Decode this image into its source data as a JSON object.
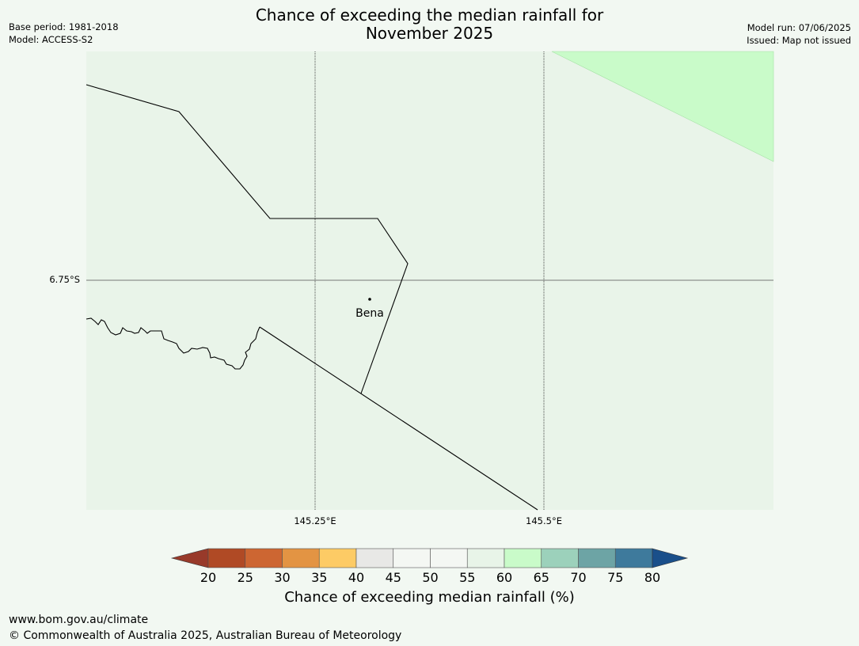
{
  "title_line1": "Chance of exceeding the median rainfall for",
  "title_line2": "November 2025",
  "meta_left": {
    "base_period": "Base period: 1981-2018",
    "model": "Model: ACCESS-S2"
  },
  "meta_right": {
    "model_run": "Model run: 07/06/2025",
    "issued": "Issued: Map not issued"
  },
  "map": {
    "background_color": "#e9f4e9",
    "highlight_color": "#c9fbc9",
    "lon_labels": [
      "145.25°E",
      "145.5°E"
    ],
    "lat_labels": [
      "6.75°S"
    ],
    "place": {
      "name": "Bena"
    }
  },
  "colorbar": {
    "ticks": [
      "20",
      "25",
      "30",
      "35",
      "40",
      "45",
      "50",
      "55",
      "60",
      "65",
      "70",
      "75",
      "80"
    ],
    "colors": [
      "#b04a25",
      "#cd6632",
      "#e39443",
      "#fdcb65",
      "#e8e8e6",
      "#f4f7f3",
      "#f4f7f3",
      "#e8f4e8",
      "#c9fbc9",
      "#9cd1bb",
      "#6da4a5",
      "#3e7a9c"
    ],
    "under_color": "#983a2a",
    "over_color": "#1a4f8a",
    "label": "Chance of exceeding median rainfall (%)"
  },
  "footer": {
    "url": "www.bom.gov.au/climate",
    "copyright": "© Commonwealth of Australia 2025, Australian Bureau of Meteorology"
  }
}
